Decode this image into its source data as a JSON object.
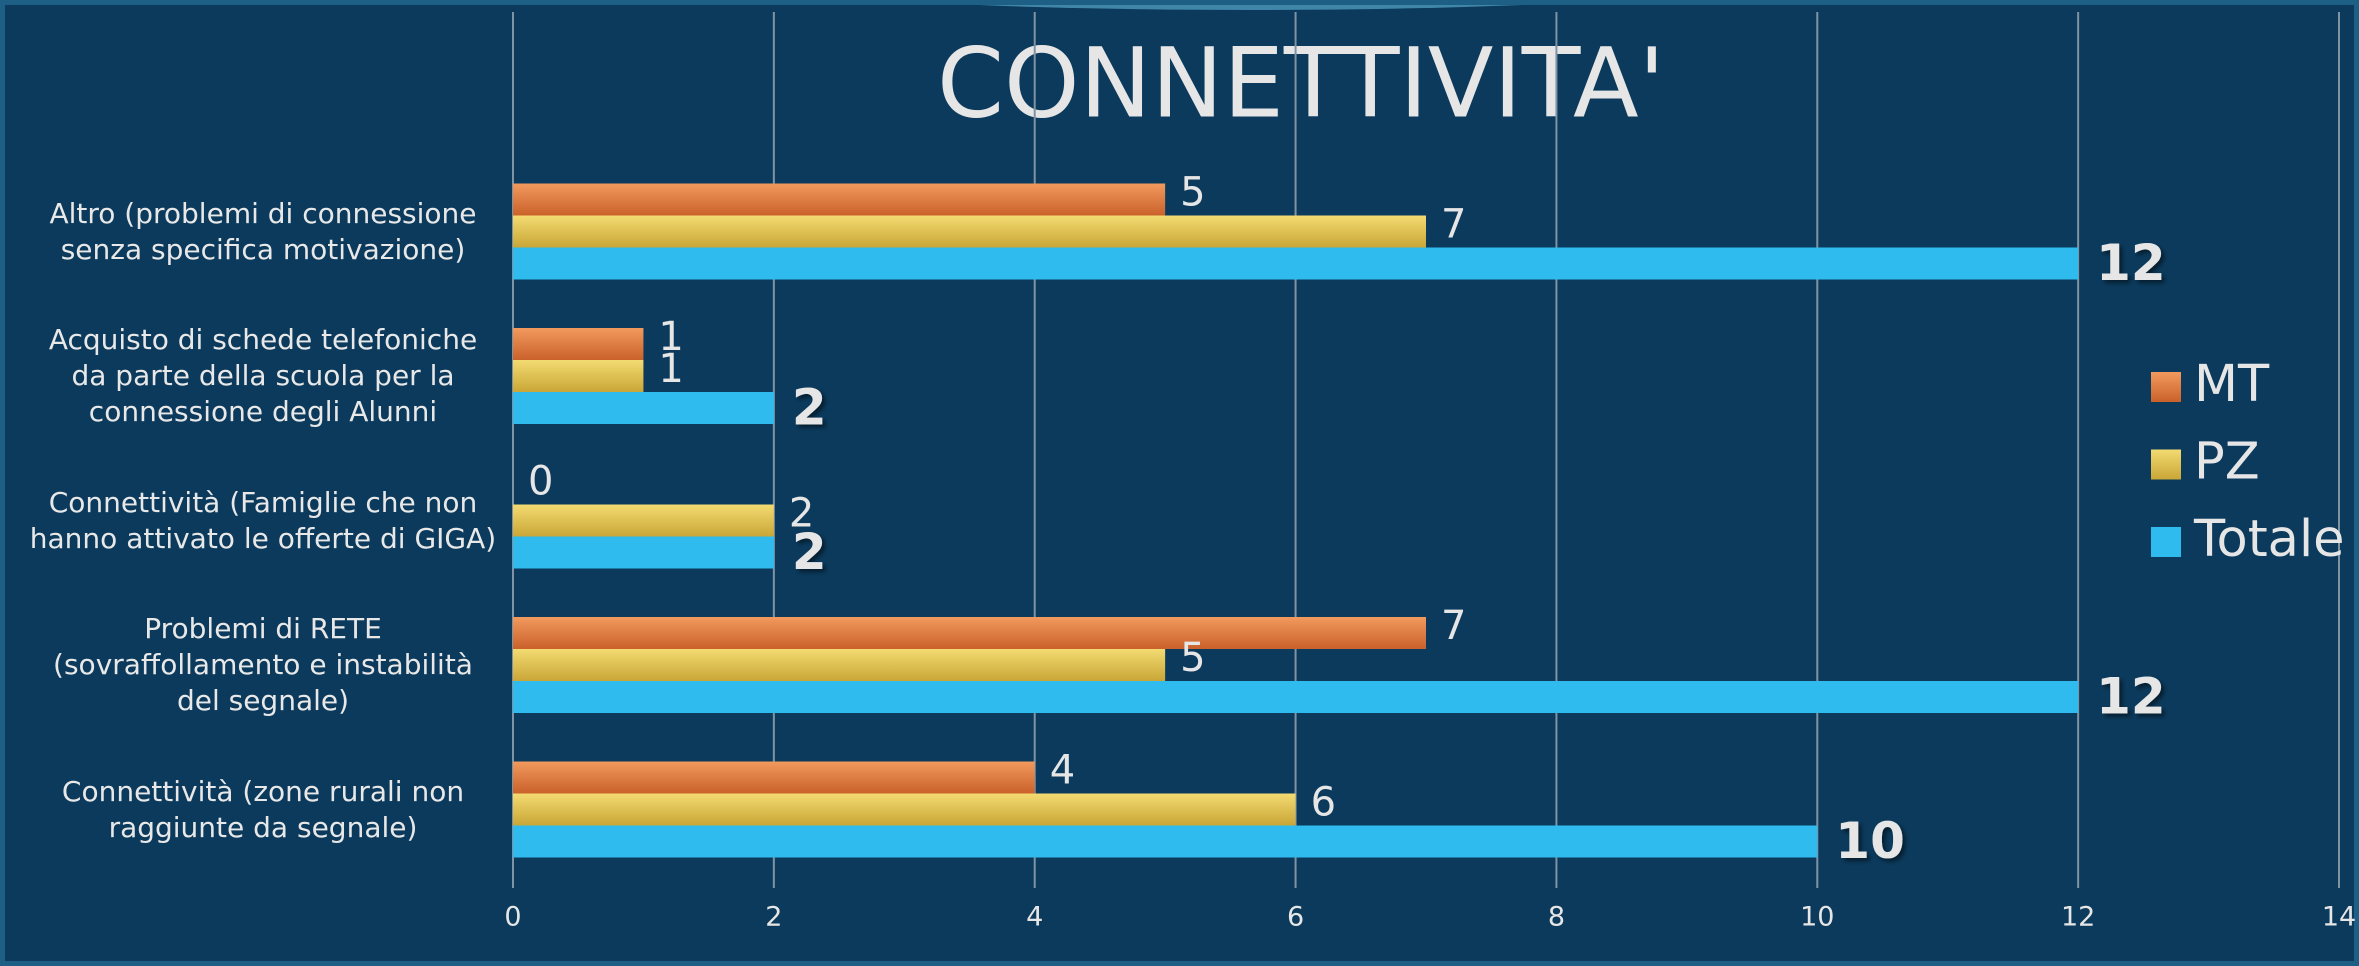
{
  "chart_data": {
    "type": "bar",
    "orientation": "horizontal",
    "title": "CONNETTIVITA'",
    "categories": [
      "Altro (problemi di connessione senza specifica motivazione)",
      "Acquisto di schede telefoniche da parte della scuola per la connessione degli Alunni",
      "Connettività (Famiglie che non hanno attivato le offerte di GIGA)",
      "Problemi di RETE (sovraffollamento e instabilità del segnale)",
      "Connettività (zone rurali non raggiunte da segnale)"
    ],
    "series": [
      {
        "name": "MT",
        "color": "#e2793b",
        "values": [
          5,
          1,
          0,
          7,
          4
        ]
      },
      {
        "name": "PZ",
        "color": "#e5c24a",
        "values": [
          7,
          1,
          2,
          5,
          6
        ]
      },
      {
        "name": "Totale",
        "color": "#2fbbee",
        "values": [
          12,
          2,
          2,
          12,
          10
        ]
      }
    ],
    "xlim": [
      0,
      14
    ],
    "xticks": [
      0,
      2,
      4,
      6,
      8,
      10,
      12,
      14
    ],
    "grid": true,
    "legend": "right"
  }
}
